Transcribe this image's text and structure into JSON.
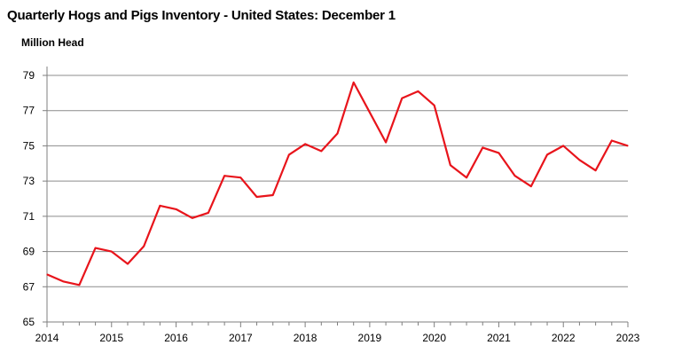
{
  "chart_data": {
    "type": "line",
    "title": "Quarterly Hogs and Pigs Inventory - United States: December 1",
    "ylabel": "Million Head",
    "xlabel": "",
    "ylim": [
      65,
      79
    ],
    "yticks": [
      65,
      67,
      69,
      71,
      73,
      75,
      77,
      79
    ],
    "xlim": [
      2014,
      2023
    ],
    "xticks": [
      2014,
      2015,
      2016,
      2017,
      2018,
      2019,
      2020,
      2021,
      2022,
      2023
    ],
    "grid": true,
    "legend": "none",
    "line_color": "#e8141b",
    "series": [
      {
        "x": [
          2014.0,
          2014.25,
          2014.5,
          2014.75,
          2015.0,
          2015.25,
          2015.5,
          2015.75,
          2016.0,
          2016.25,
          2016.5,
          2016.75,
          2017.0,
          2017.25,
          2017.5,
          2017.75,
          2018.0,
          2018.25,
          2018.5,
          2018.75,
          2019.0,
          2019.25,
          2019.5,
          2019.75,
          2020.0,
          2020.25,
          2020.5,
          2020.75,
          2021.0,
          2021.25,
          2021.5,
          2021.75,
          2022.0,
          2022.25,
          2022.5,
          2022.75,
          2023.0
        ],
        "values": [
          67.7,
          67.3,
          67.1,
          69.2,
          69.0,
          68.3,
          69.3,
          71.6,
          71.4,
          70.9,
          71.2,
          73.3,
          73.2,
          72.1,
          72.2,
          74.5,
          75.1,
          74.7,
          75.7,
          78.6,
          76.9,
          75.2,
          77.7,
          78.1,
          77.3,
          73.9,
          73.2,
          74.9,
          74.6,
          73.3,
          72.7,
          74.5,
          75.0,
          74.2,
          73.6,
          75.3,
          75.0
        ]
      }
    ]
  }
}
